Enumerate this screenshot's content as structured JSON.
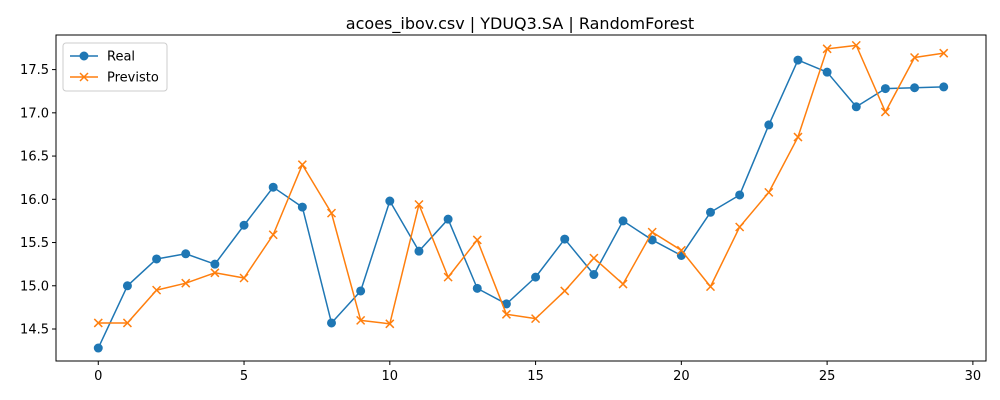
{
  "chart_data": {
    "type": "line",
    "title": "acoes_ibov.csv | YDUQ3.SA | RandomForest",
    "xlabel": "",
    "ylabel": "",
    "x": [
      0,
      1,
      2,
      3,
      4,
      5,
      6,
      7,
      8,
      9,
      10,
      11,
      12,
      13,
      14,
      15,
      16,
      17,
      18,
      19,
      20,
      21,
      22,
      23,
      24,
      25,
      26,
      27,
      28,
      29
    ],
    "xlim": [
      -1.45,
      30.45
    ],
    "ylim": [
      14.13,
      17.9
    ],
    "xticks": [
      0,
      5,
      10,
      15,
      20,
      25,
      30
    ],
    "xtick_labels": [
      "0",
      "5",
      "10",
      "15",
      "20",
      "25",
      "30"
    ],
    "yticks": [
      14.5,
      15.0,
      15.5,
      16.0,
      16.5,
      17.0,
      17.5
    ],
    "ytick_labels": [
      "14.5",
      "15.0",
      "15.5",
      "16.0",
      "16.5",
      "17.0",
      "17.5"
    ],
    "grid": false,
    "legend_position": "upper-left",
    "series": [
      {
        "name": "Real",
        "color": "#1f77b4",
        "marker": "circle",
        "values": [
          14.28,
          15.0,
          15.31,
          15.37,
          15.25,
          15.7,
          16.14,
          15.91,
          14.57,
          14.94,
          15.98,
          15.4,
          15.77,
          14.97,
          14.79,
          15.1,
          15.54,
          15.13,
          15.75,
          15.53,
          15.35,
          15.85,
          16.05,
          16.86,
          17.61,
          17.47,
          17.07,
          17.28,
          17.29,
          17.3
        ]
      },
      {
        "name": "Previsto",
        "color": "#ff7f0e",
        "marker": "x",
        "values": [
          14.57,
          14.57,
          14.95,
          15.03,
          15.15,
          15.09,
          15.59,
          16.4,
          15.84,
          14.6,
          14.56,
          15.94,
          15.1,
          15.53,
          14.67,
          14.62,
          14.94,
          15.32,
          15.02,
          15.62,
          15.41,
          14.99,
          15.68,
          16.08,
          16.72,
          17.74,
          17.78,
          17.01,
          17.64,
          17.69
        ]
      }
    ]
  }
}
